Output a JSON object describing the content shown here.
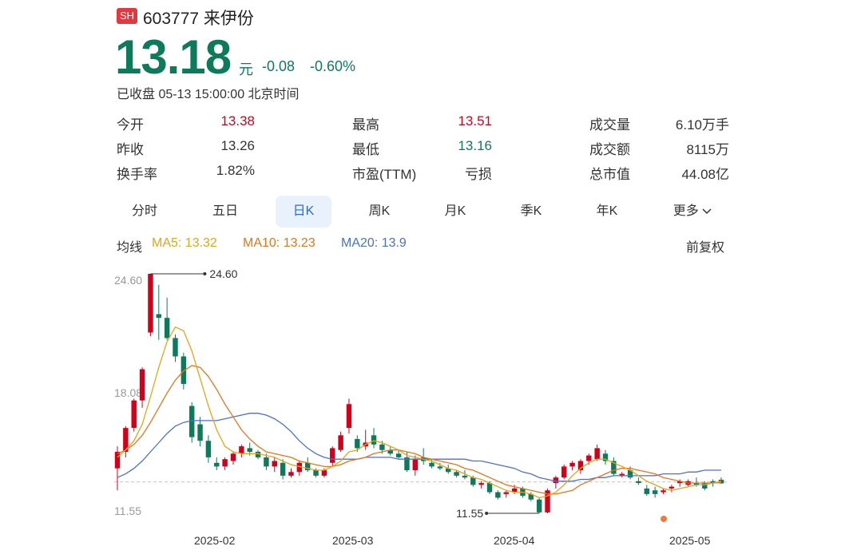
{
  "header": {
    "market_badge": "SH",
    "code_name": "603777 来伊份",
    "price": "13.18",
    "unit": "元",
    "change": "-0.08",
    "change_pct": "-0.60%",
    "status": "已收盘 05-13 15:00:00 北京时间"
  },
  "stats": [
    {
      "label": "今开",
      "value": "13.38"
    },
    {
      "label": "最高",
      "value": "13.51"
    },
    {
      "label": "成交量",
      "value": "6.10万手"
    },
    {
      "label": "昨收",
      "value": "13.26"
    },
    {
      "label": "最低",
      "value": "13.16"
    },
    {
      "label": "成交额",
      "value": "8115万"
    },
    {
      "label": "换手率",
      "value": "1.82%"
    },
    {
      "label": "市盈(TTM)",
      "value": "亏损"
    },
    {
      "label": "总市值",
      "value": "44.08亿"
    }
  ],
  "tabs": [
    "分时",
    "五日",
    "日K",
    "周K",
    "月K",
    "季K",
    "年K",
    "更多"
  ],
  "ma": {
    "label": "均线",
    "ma5": "MA5: 13.32",
    "ma10": "MA10: 13.23",
    "ma20": "MA20: 13.9",
    "adjust": "前复权"
  },
  "colors": {
    "up": "#d0021b",
    "down": "#0e7a5c",
    "ma5": "#e8a317",
    "ma10": "#e8731a",
    "ma20": "#4a6fd6",
    "brand": "#e2383f"
  },
  "chart_data": {
    "type": "candlestick",
    "y_ticks": [
      "24.60",
      "18.08",
      "11.55"
    ],
    "x_ticks": [
      "2025-02",
      "2025-03",
      "2025-04",
      "2025-05"
    ],
    "max_label": "24.60",
    "min_label": "11.55",
    "ylim": [
      11.55,
      24.6
    ],
    "ref_price": 13.26,
    "candles": [
      [
        14.0,
        15.2,
        12.8,
        14.9
      ],
      [
        14.9,
        16.3,
        14.6,
        16.2
      ],
      [
        16.2,
        17.8,
        16.0,
        17.7
      ],
      [
        17.7,
        19.5,
        17.3,
        19.4
      ],
      [
        21.4,
        24.6,
        21.2,
        24.6
      ],
      [
        22.4,
        24.0,
        21.0,
        22.2
      ],
      [
        22.2,
        23.3,
        21.0,
        21.1
      ],
      [
        21.1,
        21.3,
        19.8,
        20.1
      ],
      [
        20.1,
        20.3,
        18.3,
        18.6
      ],
      [
        17.4,
        17.6,
        15.4,
        15.7
      ],
      [
        16.4,
        16.8,
        15.2,
        15.5
      ],
      [
        15.5,
        15.8,
        14.3,
        14.6
      ],
      [
        14.3,
        14.6,
        13.9,
        14.1
      ],
      [
        14.1,
        14.6,
        13.9,
        14.5
      ],
      [
        14.4,
        14.9,
        14.2,
        14.8
      ],
      [
        14.8,
        15.3,
        14.6,
        15.2
      ],
      [
        15.1,
        15.4,
        14.7,
        14.9
      ],
      [
        14.9,
        15.0,
        14.5,
        14.6
      ],
      [
        14.6,
        14.8,
        13.9,
        14.1
      ],
      [
        14.1,
        14.6,
        13.8,
        14.4
      ],
      [
        14.3,
        14.5,
        13.4,
        13.6
      ],
      [
        13.6,
        14.0,
        13.5,
        13.8
      ],
      [
        13.8,
        14.4,
        13.6,
        14.3
      ],
      [
        14.3,
        14.6,
        13.8,
        13.9
      ],
      [
        13.9,
        14.0,
        13.5,
        13.6
      ],
      [
        13.6,
        14.0,
        13.5,
        13.9
      ],
      [
        14.3,
        15.2,
        14.1,
        15.1
      ],
      [
        15.0,
        16.0,
        14.9,
        15.8
      ],
      [
        16.2,
        17.8,
        15.9,
        17.5
      ],
      [
        15.6,
        15.8,
        14.9,
        15.1
      ],
      [
        15.2,
        16.1,
        15.0,
        15.4
      ],
      [
        15.8,
        16.2,
        15.1,
        15.3
      ],
      [
        15.3,
        15.5,
        14.8,
        15.0
      ],
      [
        15.0,
        15.2,
        14.7,
        14.8
      ],
      [
        14.8,
        15.0,
        14.5,
        14.6
      ],
      [
        14.6,
        14.9,
        13.8,
        13.9
      ],
      [
        13.9,
        14.7,
        13.6,
        14.5
      ],
      [
        14.6,
        15.1,
        14.2,
        14.4
      ],
      [
        14.3,
        14.5,
        14.0,
        14.1
      ],
      [
        14.1,
        14.3,
        13.9,
        14.0
      ],
      [
        14.0,
        14.2,
        13.7,
        13.8
      ],
      [
        13.8,
        13.9,
        13.5,
        13.6
      ],
      [
        13.6,
        13.9,
        13.4,
        13.5
      ],
      [
        13.5,
        13.6,
        13.0,
        13.1
      ],
      [
        13.1,
        13.3,
        12.9,
        13.2
      ],
      [
        13.2,
        13.3,
        12.6,
        12.7
      ],
      [
        12.7,
        12.8,
        12.3,
        12.4
      ],
      [
        12.6,
        12.8,
        12.4,
        12.7
      ],
      [
        12.7,
        13.1,
        12.6,
        12.9
      ],
      [
        12.9,
        13.0,
        12.4,
        12.5
      ],
      [
        12.6,
        12.7,
        12.2,
        12.3
      ],
      [
        12.3,
        12.4,
        11.55,
        11.6
      ],
      [
        11.6,
        12.9,
        11.55,
        12.8
      ],
      [
        13.2,
        13.6,
        12.9,
        13.5
      ],
      [
        13.5,
        14.2,
        13.4,
        14.1
      ],
      [
        14.1,
        14.4,
        13.9,
        14.3
      ],
      [
        13.9,
        14.5,
        13.7,
        14.4
      ],
      [
        14.4,
        14.8,
        14.2,
        14.7
      ],
      [
        14.5,
        15.3,
        14.4,
        15.1
      ],
      [
        14.8,
        15.0,
        14.2,
        14.4
      ],
      [
        14.4,
        14.6,
        13.6,
        13.7
      ],
      [
        13.6,
        13.8,
        13.5,
        13.7
      ],
      [
        13.9,
        14.1,
        13.4,
        13.5
      ],
      [
        13.3,
        13.5,
        13.1,
        13.2
      ],
      [
        12.9,
        13.1,
        12.5,
        12.6
      ],
      [
        12.8,
        13.0,
        12.4,
        12.6
      ],
      [
        12.7,
        12.9,
        12.6,
        12.8
      ],
      [
        12.9,
        13.1,
        12.7,
        13.0
      ],
      [
        13.2,
        13.4,
        13.0,
        13.3
      ],
      [
        13.1,
        13.4,
        13.0,
        13.3
      ],
      [
        13.2,
        13.5,
        13.0,
        13.1
      ],
      [
        13.2,
        13.3,
        12.8,
        12.9
      ],
      [
        13.3,
        13.4,
        13.0,
        13.2
      ],
      [
        13.38,
        13.51,
        13.16,
        13.18
      ]
    ],
    "ma5": [
      14.6,
      15.0,
      15.5,
      16.4,
      17.9,
      19.5,
      20.9,
      21.7,
      21.5,
      20.4,
      18.9,
      17.4,
      16.1,
      15.2,
      14.9,
      14.8,
      14.8,
      14.8,
      14.7,
      14.6,
      14.4,
      14.2,
      14.1,
      14.0,
      13.9,
      13.9,
      14.1,
      14.4,
      14.9,
      15.0,
      15.3,
      15.5,
      15.4,
      15.2,
      15.0,
      14.7,
      14.6,
      14.5,
      14.4,
      14.2,
      14.0,
      13.9,
      13.7,
      13.5,
      13.4,
      13.2,
      13.0,
      12.8,
      12.7,
      12.7,
      12.6,
      12.4,
      12.5,
      12.7,
      13.1,
      13.6,
      14.0,
      14.3,
      14.5,
      14.5,
      14.3,
      14.1,
      13.9,
      13.6,
      13.3,
      13.1,
      12.9,
      12.8,
      12.9,
      13.0,
      13.1,
      13.1,
      13.2,
      13.3
    ],
    "ma10": [
      14.8,
      15.0,
      15.3,
      15.8,
      16.5,
      17.3,
      18.1,
      18.8,
      19.3,
      19.6,
      19.5,
      19.0,
      18.3,
      17.5,
      16.8,
      16.1,
      15.6,
      15.2,
      14.9,
      14.8,
      14.7,
      14.6,
      14.4,
      14.3,
      14.2,
      14.1,
      14.1,
      14.2,
      14.4,
      14.5,
      14.6,
      14.8,
      14.9,
      15.0,
      15.0,
      14.9,
      14.8,
      14.6,
      14.5,
      14.4,
      14.3,
      14.2,
      14.0,
      13.9,
      13.7,
      13.5,
      13.3,
      13.1,
      13.0,
      12.9,
      12.8,
      12.7,
      12.6,
      12.6,
      12.7,
      12.8,
      13.1,
      13.3,
      13.5,
      13.7,
      13.9,
      14.0,
      14.0,
      13.9,
      13.8,
      13.7,
      13.5,
      13.4,
      13.3,
      13.2,
      13.2,
      13.2,
      13.2,
      13.23
    ],
    "ma20": [
      13.5,
      13.7,
      14.0,
      14.4,
      14.9,
      15.4,
      15.9,
      16.3,
      16.5,
      16.6,
      16.6,
      16.6,
      16.6,
      16.7,
      16.8,
      16.9,
      17.0,
      17.0,
      16.9,
      16.7,
      16.4,
      16.0,
      15.5,
      15.1,
      14.8,
      14.6,
      14.5,
      14.5,
      14.5,
      14.5,
      14.6,
      14.6,
      14.6,
      14.6,
      14.5,
      14.5,
      14.5,
      14.5,
      14.5,
      14.5,
      14.5,
      14.5,
      14.5,
      14.4,
      14.4,
      14.3,
      14.2,
      14.1,
      14.0,
      13.8,
      13.7,
      13.5,
      13.4,
      13.3,
      13.3,
      13.3,
      13.4,
      13.4,
      13.5,
      13.5,
      13.6,
      13.6,
      13.6,
      13.6,
      13.6,
      13.6,
      13.7,
      13.7,
      13.7,
      13.8,
      13.8,
      13.9,
      13.9,
      13.9
    ]
  }
}
